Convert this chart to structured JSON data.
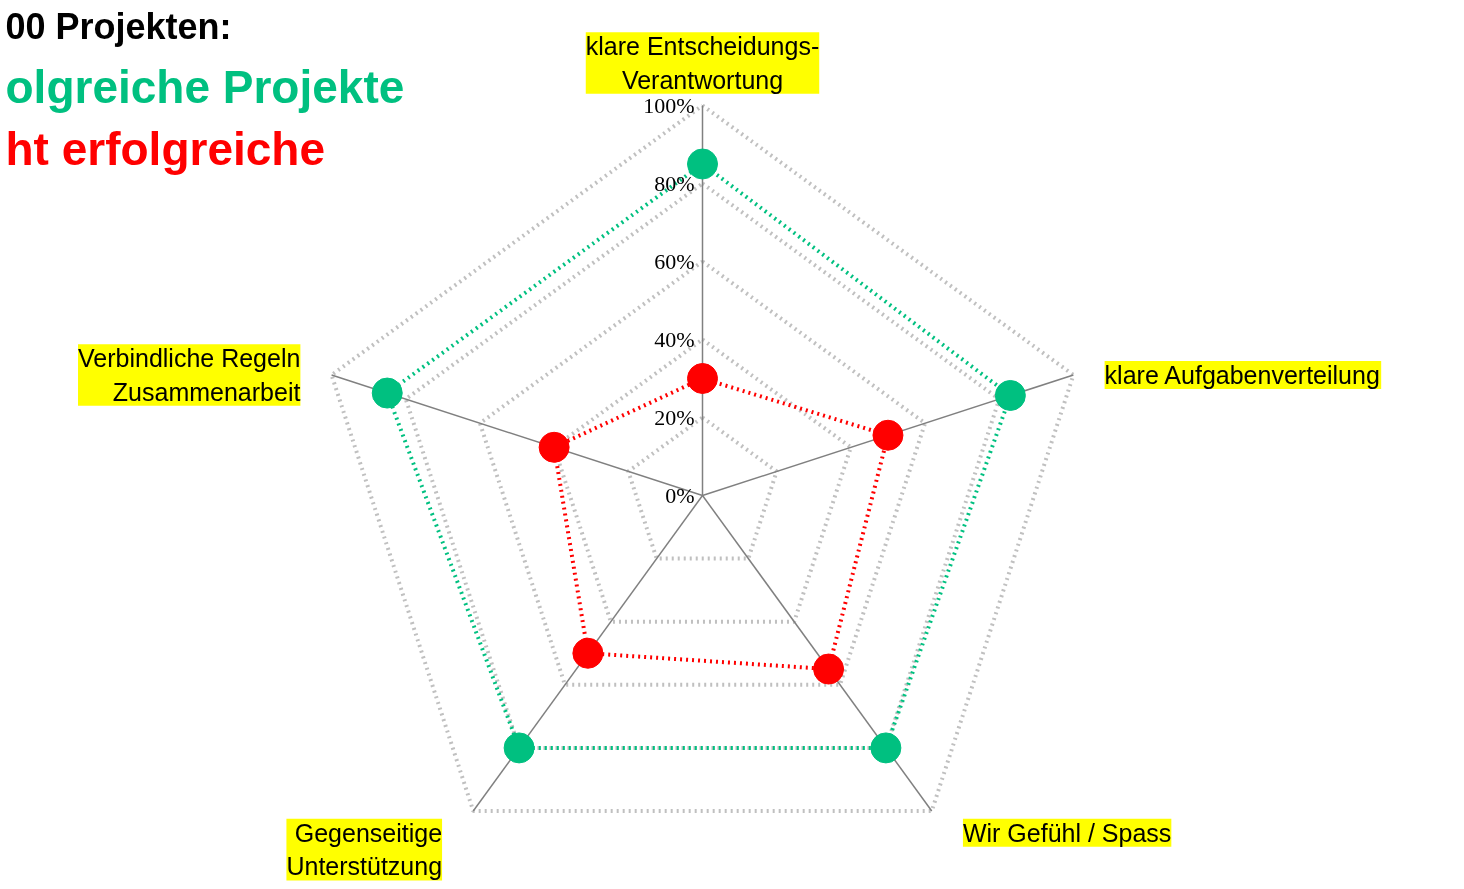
{
  "chart_data": {
    "type": "radar",
    "title": "00 Projekten:",
    "categories": [
      "klare Entscheidungs-\nVerantwortung",
      "klare Aufgabenverteilung",
      "Wir Gefühl / Spass",
      "Gegenseitige\nUnterstützung",
      "Verbindliche Regeln\nZusammenarbeit"
    ],
    "series": [
      {
        "name": "olgreiche Projekte",
        "color": "#00c080",
        "values": [
          85,
          83,
          80,
          80,
          85
        ]
      },
      {
        "name": "ht erfolgreiche",
        "color": "#ff0000",
        "values": [
          30,
          50,
          55,
          50,
          40
        ]
      }
    ],
    "ylim": [
      0,
      100
    ],
    "yticks": [
      {
        "value": 0,
        "label": "0%"
      },
      {
        "value": 20,
        "label": "20%"
      },
      {
        "value": 40,
        "label": "40%"
      },
      {
        "value": 60,
        "label": "60%"
      },
      {
        "value": 80,
        "label": "80%"
      },
      {
        "value": 100,
        "label": "100%"
      }
    ],
    "grid": true,
    "legend": "top left",
    "marker": "circle",
    "line_style": "dotted"
  }
}
